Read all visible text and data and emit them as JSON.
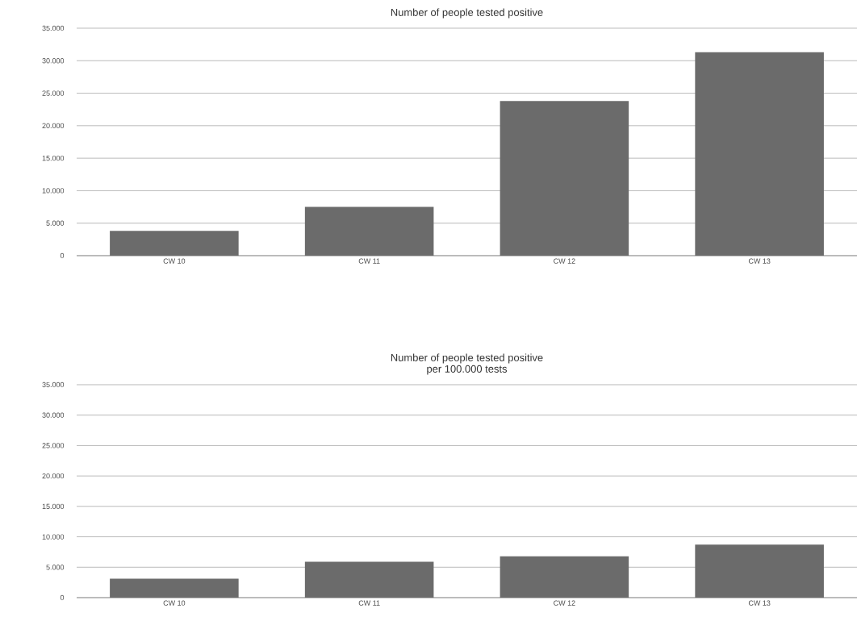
{
  "chart_data": [
    {
      "type": "bar",
      "title": "Number of people tested positive",
      "categories": [
        "CW 10",
        "CW 11",
        "CW 12",
        "CW 13"
      ],
      "values": [
        3800,
        7500,
        23800,
        31300
      ],
      "color": "#6b6b6b",
      "ylim": [
        0,
        35000
      ],
      "yticks": [
        0,
        {
          "value": 5000,
          "label": "5.000"
        },
        {
          "value": 10000,
          "label": "10.000"
        },
        {
          "value": 15000,
          "label": "15.000"
        },
        {
          "value": 20000,
          "label": "20.000"
        },
        {
          "value": 25000,
          "label": "25.000"
        },
        {
          "value": 30000,
          "label": "30.000"
        },
        {
          "value": 35000,
          "label": "35.000"
        }
      ],
      "grid": "y"
    },
    {
      "type": "bar",
      "title": "Number of people tested positive",
      "subtitle": "per 100.000 tests",
      "categories": [
        "CW 10",
        "CW 11",
        "CW 12",
        "CW 13"
      ],
      "values": [
        3100,
        5900,
        6800,
        8700
      ],
      "color": "#6b6b6b",
      "ylim": [
        0,
        35000
      ],
      "yticks": [
        0,
        {
          "value": 5000,
          "label": "5.000"
        },
        {
          "value": 10000,
          "label": "10.000"
        },
        {
          "value": 15000,
          "label": "15.000"
        },
        {
          "value": 20000,
          "label": "20.000"
        },
        {
          "value": 25000,
          "label": "25.000"
        },
        {
          "value": 30000,
          "label": "30.000"
        },
        {
          "value": 35000,
          "label": "35.000"
        }
      ],
      "grid": "y"
    }
  ]
}
